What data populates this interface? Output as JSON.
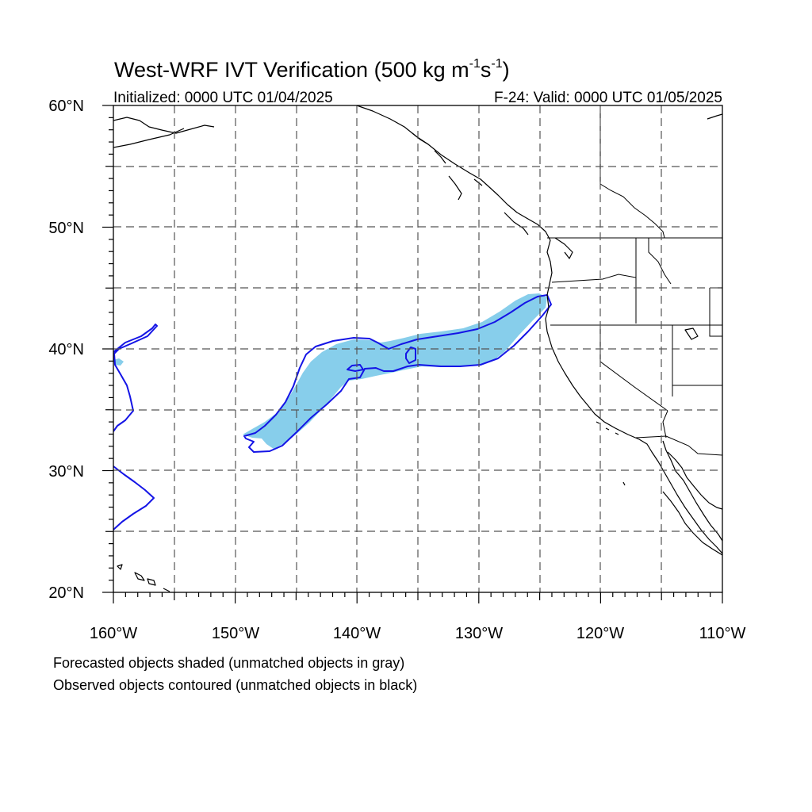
{
  "title": {
    "main": "West-WRF IVT Verification (500 kg m",
    "sup1": "-1",
    "mid": "s",
    "sup2": "-1",
    "close": ")"
  },
  "subtitle": {
    "left": "Initialized: 0000 UTC 01/04/2025",
    "right": "F-24: Valid: 0000 UTC 01/05/2025"
  },
  "axes": {
    "lon_range": [
      -160,
      -110
    ],
    "lat_range": [
      20,
      60
    ],
    "lon_labels": [
      "160°W",
      "150°W",
      "140°W",
      "130°W",
      "120°W",
      "110°W"
    ],
    "lat_labels": [
      "60°N",
      "50°N",
      "40°N",
      "30°N",
      "20°N"
    ],
    "grid": "dashed every 5 degrees"
  },
  "footer": {
    "line1": "Forecasted objects shaded (unmatched objects in gray)",
    "line2": "Observed objects contoured (unmatched objects in black)"
  },
  "colors": {
    "forecast_fill": "#87ceeb",
    "observed_contour": "#1414e6"
  }
}
